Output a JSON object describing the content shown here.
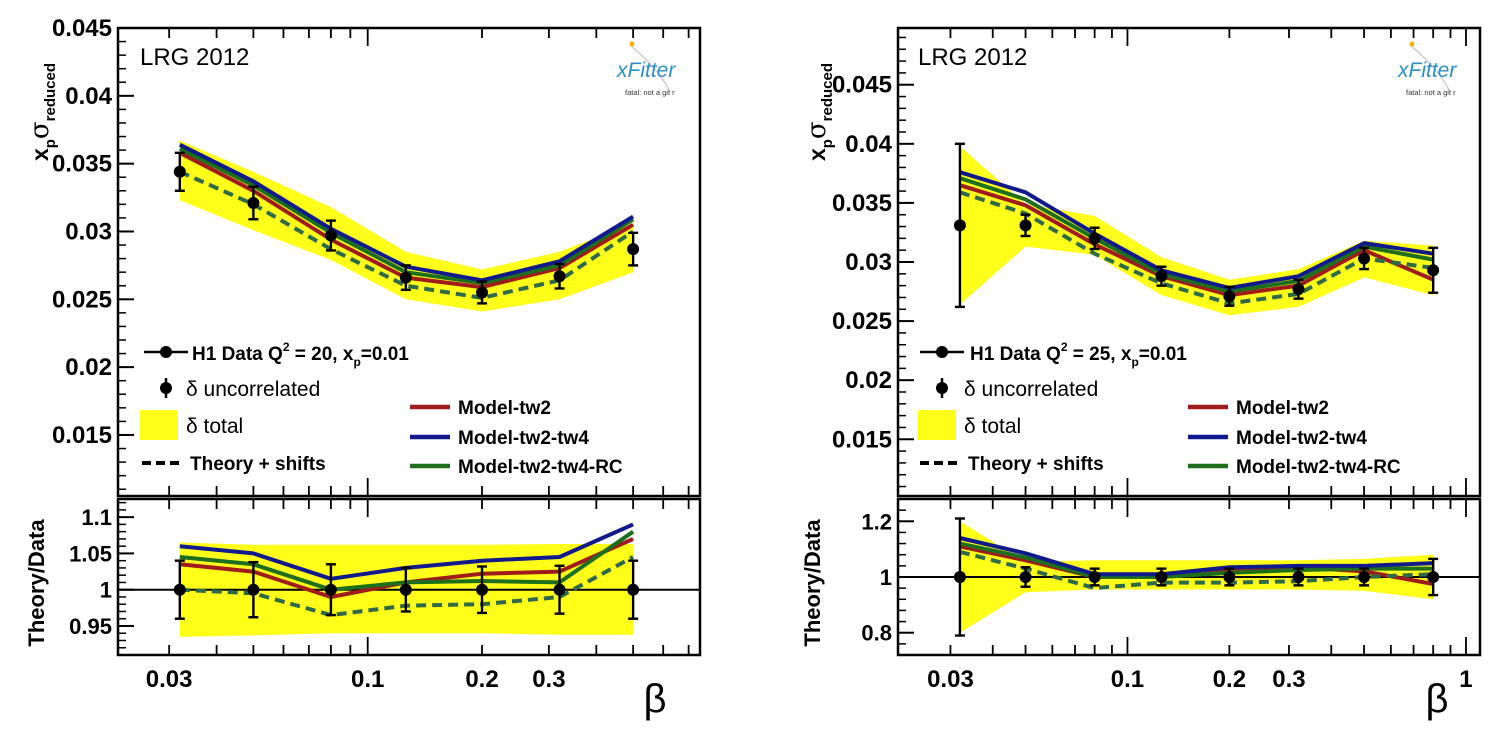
{
  "colors": {
    "band": "#ffff1a",
    "model_tw2": "#a01b1b",
    "model_tw2_tw4": "#111a8c",
    "model_tw2_tw4_rc": "#1d6e1d",
    "theory_shifts": "#2f6a48",
    "data": "#000000",
    "logo_blue": "#2a8fc8"
  },
  "legend": {
    "data_prefix": "H1 Data Q",
    "sq": "2",
    "xp_lbl": "x",
    "xp_sub": "p",
    "uncorrelated": "δ uncorrelated",
    "total": "δ total",
    "theory_shifts": "Theory + shifts",
    "model_tw2": "Model-tw2",
    "model_tw2_tw4": "Model-tw2-tw4",
    "model_tw2_tw4_rc": "Model-tw2-tw4-RC"
  },
  "chart_data": [
    {
      "type": "line",
      "title": "LRG 2012",
      "logo_text": "xFitter",
      "logo_sub": "fatal: not a git r",
      "q2_text": " = 20,  ",
      "xp_value": "=0.01",
      "xlabel": "β",
      "xscale": "log",
      "xlim": [
        0.022,
        0.75
      ],
      "x_ticks": [
        0.03,
        0.1,
        0.2,
        0.3
      ],
      "x_tick_labels": [
        "0.03",
        "0.1",
        "0.2",
        "0.3"
      ],
      "top": {
        "ylabel": {
          "main": "x",
          "sub1": "p",
          "sigma": "σ",
          "sub2": "reduced"
        },
        "ylim": [
          0.0105,
          0.045
        ],
        "y_ticks": [
          0.015,
          0.02,
          0.025,
          0.03,
          0.035,
          0.04,
          0.045
        ],
        "y_tick_labels": [
          "0.015",
          "0.02",
          "0.025",
          "0.03",
          "0.035",
          "0.04",
          "0.045"
        ],
        "x": [
          0.032,
          0.05,
          0.08,
          0.126,
          0.2,
          0.32,
          0.5
        ],
        "data": [
          0.0344,
          0.0321,
          0.0297,
          0.0266,
          0.0255,
          0.0267,
          0.0287
        ],
        "err": [
          0.0014,
          0.0012,
          0.0011,
          0.0009,
          0.0008,
          0.0009,
          0.0012
        ],
        "band_low": [
          0.0323,
          0.0301,
          0.0279,
          0.025,
          0.0241,
          0.025,
          0.027
        ],
        "band_high": [
          0.0367,
          0.0344,
          0.0318,
          0.0285,
          0.0272,
          0.0285,
          0.0306
        ],
        "model_tw2": [
          0.0358,
          0.033,
          0.0294,
          0.0266,
          0.0259,
          0.0273,
          0.0305
        ],
        "model_tw2_tw4": [
          0.0364,
          0.0337,
          0.0302,
          0.0274,
          0.0264,
          0.0278,
          0.0311
        ],
        "model_tw2_tw4_rc": [
          0.0361,
          0.0334,
          0.0299,
          0.027,
          0.0262,
          0.0275,
          0.0309
        ],
        "theory_shifts": [
          0.0344,
          0.032,
          0.0287,
          0.026,
          0.0251,
          0.0264,
          0.03
        ]
      },
      "ratio": {
        "ylabel": "Theory/Data",
        "ylim": [
          0.91,
          1.125
        ],
        "y_ticks": [
          0.95,
          1.0,
          1.05,
          1.1
        ],
        "y_tick_labels": [
          "0.95",
          "1",
          "1.05",
          "1.1"
        ],
        "ref_line": 1.0,
        "data": [
          1,
          1,
          1,
          1,
          1,
          1,
          1
        ],
        "err": [
          0.04,
          0.038,
          0.035,
          0.03,
          0.032,
          0.033,
          0.04
        ],
        "band_low": [
          0.935,
          0.937,
          0.94,
          0.94,
          0.94,
          0.938,
          0.938
        ],
        "band_high": [
          1.065,
          1.062,
          1.062,
          1.062,
          1.062,
          1.063,
          1.063
        ],
        "model_tw2": [
          1.035,
          1.025,
          0.99,
          1.01,
          1.022,
          1.025,
          1.07
        ],
        "model_tw2_tw4": [
          1.06,
          1.05,
          1.015,
          1.03,
          1.04,
          1.045,
          1.09
        ],
        "model_tw2_tw4_rc": [
          1.045,
          1.035,
          1.0,
          1.01,
          1.012,
          1.01,
          1.08
        ],
        "theory_shifts": [
          1.0,
          0.995,
          0.965,
          0.978,
          0.98,
          0.99,
          1.045
        ]
      }
    },
    {
      "type": "line",
      "title": "LRG 2012",
      "logo_text": "xFitter",
      "logo_sub": "fatal: not a git r",
      "q2_text": " = 25,  ",
      "xp_value": "=0.01",
      "xlabel": "β",
      "xscale": "log",
      "xlim": [
        0.021,
        1.1
      ],
      "x_ticks": [
        0.03,
        0.1,
        0.2,
        0.3,
        1
      ],
      "x_tick_labels": [
        "0.03",
        "0.1",
        "0.2",
        "0.3",
        "1"
      ],
      "top": {
        "ylabel": {
          "main": "x",
          "sub1": "p",
          "sigma": "σ",
          "sub2": "reduced"
        },
        "ylim": [
          0.0102,
          0.0498
        ],
        "y_ticks": [
          0.015,
          0.02,
          0.025,
          0.03,
          0.035,
          0.04,
          0.045
        ],
        "y_tick_labels": [
          "0.015",
          "0.02",
          "0.025",
          "0.03",
          "0.035",
          "0.04",
          "0.045"
        ],
        "x": [
          0.032,
          0.05,
          0.08,
          0.126,
          0.2,
          0.32,
          0.5,
          0.8
        ],
        "data": [
          0.0331,
          0.0331,
          0.032,
          0.0288,
          0.0271,
          0.0277,
          0.0303,
          0.0293
        ],
        "err": [
          0.0069,
          0.0009,
          0.0009,
          0.0008,
          0.0008,
          0.0008,
          0.0009,
          0.0019
        ],
        "band_low": [
          0.0264,
          0.0313,
          0.0306,
          0.0272,
          0.0255,
          0.0262,
          0.0287,
          0.0272
        ],
        "band_high": [
          0.0398,
          0.0349,
          0.0339,
          0.0304,
          0.0285,
          0.0294,
          0.0318,
          0.0314
        ],
        "model_tw2": [
          0.0365,
          0.0348,
          0.0315,
          0.0288,
          0.0272,
          0.028,
          0.031,
          0.0285
        ],
        "model_tw2_tw4": [
          0.0376,
          0.0359,
          0.0324,
          0.0293,
          0.0278,
          0.0288,
          0.0316,
          0.0307
        ],
        "model_tw2_tw4_rc": [
          0.0371,
          0.0353,
          0.032,
          0.029,
          0.0275,
          0.0284,
          0.0313,
          0.0302
        ],
        "theory_shifts": [
          0.0359,
          0.0341,
          0.0307,
          0.0282,
          0.0265,
          0.0273,
          0.0303,
          0.0295
        ]
      },
      "ratio": {
        "ylabel": "Theory/Data",
        "ylim": [
          0.72,
          1.28
        ],
        "y_ticks": [
          0.8,
          1.0,
          1.2
        ],
        "y_tick_labels": [
          "0.8",
          "1",
          "1.2"
        ],
        "ref_line": 1.0,
        "data": [
          1,
          1,
          1,
          1,
          1,
          1,
          1,
          1
        ],
        "err": [
          0.21,
          0.035,
          0.03,
          0.03,
          0.03,
          0.03,
          0.03,
          0.065
        ],
        "band_low": [
          0.8,
          0.945,
          0.955,
          0.955,
          0.955,
          0.955,
          0.95,
          0.92
        ],
        "band_high": [
          1.2,
          1.055,
          1.06,
          1.06,
          1.06,
          1.06,
          1.065,
          1.08
        ],
        "model_tw2": [
          1.11,
          1.06,
          1.0,
          1.0,
          1.03,
          1.035,
          1.02,
          0.975
        ],
        "model_tw2_tw4": [
          1.14,
          1.085,
          1.01,
          1.01,
          1.035,
          1.04,
          1.04,
          1.05
        ],
        "model_tw2_tw4_rc": [
          1.12,
          1.07,
          1.0,
          1.0,
          1.015,
          1.025,
          1.03,
          1.03
        ],
        "theory_shifts": [
          1.09,
          1.03,
          0.96,
          0.98,
          0.98,
          0.985,
          1.0,
          1.01
        ]
      }
    }
  ]
}
